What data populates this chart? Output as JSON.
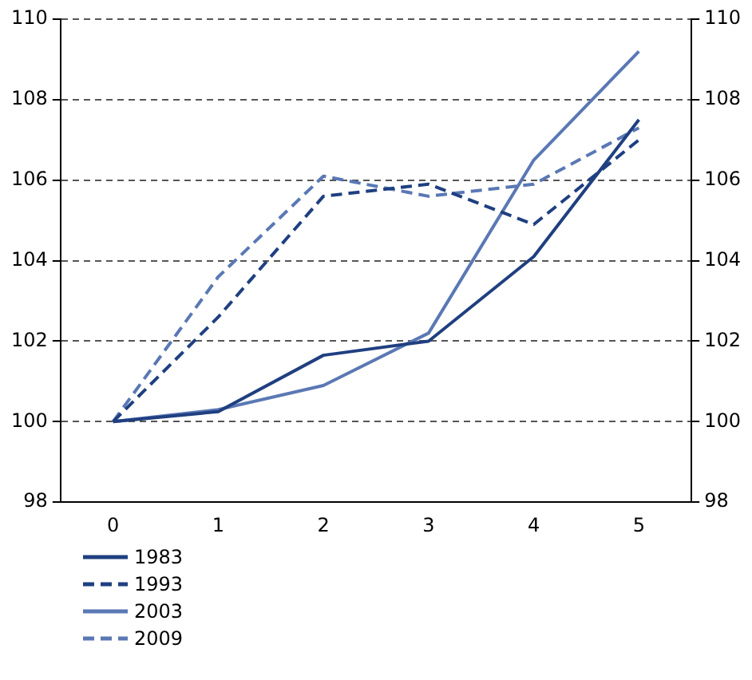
{
  "chart_data": {
    "type": "line",
    "categories": [
      "0",
      "1",
      "2",
      "3",
      "4",
      "5"
    ],
    "series": [
      {
        "name": "1983",
        "color": "#1f3f80",
        "line_style": "solid",
        "values": [
          100,
          100.25,
          101.65,
          102.0,
          104.1,
          107.5
        ]
      },
      {
        "name": "1993",
        "color": "#1f3f80",
        "line_style": "dashed",
        "values": [
          100,
          102.6,
          105.6,
          105.9,
          104.9,
          107.0
        ]
      },
      {
        "name": "2003",
        "color": "#5a78b4",
        "line_style": "solid",
        "values": [
          100,
          100.3,
          100.9,
          102.2,
          106.5,
          109.2
        ]
      },
      {
        "name": "2009",
        "color": "#5a78b4",
        "line_style": "dashed",
        "values": [
          100,
          103.6,
          106.1,
          105.6,
          105.9,
          107.3
        ]
      }
    ],
    "ylim": [
      98,
      110
    ],
    "yticks": [
      98,
      100,
      102,
      104,
      106,
      108,
      110
    ],
    "y2lim": [
      98,
      110
    ],
    "y2ticks": [
      98,
      100,
      102,
      104,
      106,
      108,
      110
    ],
    "grid": "y",
    "legend": "bottom",
    "marker": "none"
  }
}
